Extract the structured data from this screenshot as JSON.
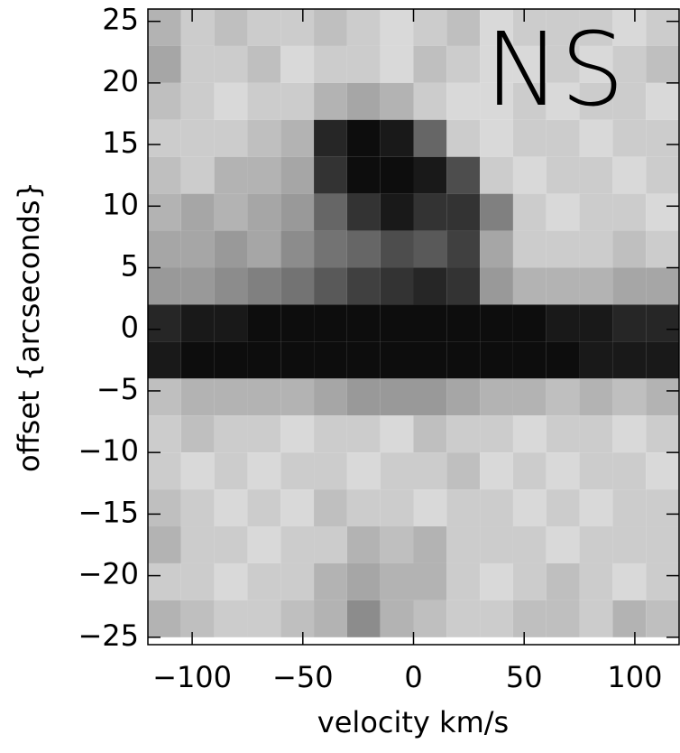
{
  "chart_data": {
    "type": "heatmap",
    "annotation": "NS",
    "xlabel": "velocity km/s",
    "ylabel": "offset {arcseconds}",
    "xlim": [
      -120,
      120
    ],
    "ylim": [
      -25.6,
      26
    ],
    "xticks": [
      {
        "value": -100,
        "label": "−100"
      },
      {
        "value": -50,
        "label": "−50"
      },
      0,
      50,
      100
    ],
    "yticks": [
      {
        "value": -25,
        "label": "−25"
      },
      {
        "value": -20,
        "label": "−20"
      },
      {
        "value": -15,
        "label": "−15"
      },
      {
        "value": -10,
        "label": "−10"
      },
      {
        "value": -5,
        "label": "−5"
      },
      0,
      5,
      10,
      15,
      20,
      25
    ],
    "x": [
      -112.5,
      -97.5,
      -82.5,
      -67.5,
      -52.5,
      -37.5,
      -22.5,
      -7.5,
      7.5,
      22.5,
      37.5,
      52.5,
      67.5,
      82.5,
      97.5,
      112.5
    ],
    "y": [
      24.5,
      21.5,
      18.5,
      15.5,
      12.5,
      9.5,
      6.5,
      3.5,
      0.5,
      -2.5,
      -5.5,
      -8.5,
      -11.5,
      -14.5,
      -17.5,
      -20.5,
      -23.5
    ],
    "values": [
      [
        0.3,
        0.2,
        0.25,
        0.2,
        0.2,
        0.25,
        0.2,
        0.15,
        0.2,
        0.25,
        0.15,
        0.2,
        0.2,
        0.2,
        0.15,
        0.2
      ],
      [
        0.35,
        0.2,
        0.2,
        0.25,
        0.15,
        0.2,
        0.2,
        0.15,
        0.25,
        0.2,
        0.15,
        0.15,
        0.2,
        0.15,
        0.2,
        0.25
      ],
      [
        0.25,
        0.2,
        0.15,
        0.2,
        0.2,
        0.3,
        0.35,
        0.3,
        0.2,
        0.15,
        0.15,
        0.2,
        0.15,
        0.2,
        0.2,
        0.15
      ],
      [
        0.2,
        0.2,
        0.2,
        0.25,
        0.3,
        0.85,
        0.95,
        0.9,
        0.6,
        0.2,
        0.15,
        0.2,
        0.2,
        0.15,
        0.2,
        0.2
      ],
      [
        0.25,
        0.2,
        0.3,
        0.3,
        0.35,
        0.8,
        0.95,
        0.95,
        0.9,
        0.7,
        0.2,
        0.15,
        0.2,
        0.2,
        0.15,
        0.2
      ],
      [
        0.3,
        0.35,
        0.3,
        0.35,
        0.4,
        0.6,
        0.8,
        0.9,
        0.8,
        0.8,
        0.5,
        0.2,
        0.15,
        0.2,
        0.2,
        0.15
      ],
      [
        0.35,
        0.35,
        0.4,
        0.35,
        0.45,
        0.55,
        0.6,
        0.7,
        0.65,
        0.75,
        0.35,
        0.2,
        0.2,
        0.2,
        0.25,
        0.2
      ],
      [
        0.4,
        0.4,
        0.45,
        0.5,
        0.55,
        0.65,
        0.75,
        0.8,
        0.85,
        0.8,
        0.4,
        0.3,
        0.3,
        0.3,
        0.35,
        0.35
      ],
      [
        0.85,
        0.9,
        0.9,
        0.95,
        0.95,
        0.95,
        0.95,
        0.95,
        0.95,
        0.95,
        0.95,
        0.95,
        0.9,
        0.9,
        0.85,
        0.85
      ],
      [
        0.9,
        0.95,
        0.95,
        0.95,
        0.95,
        0.95,
        0.95,
        0.95,
        0.95,
        0.95,
        0.95,
        0.95,
        0.95,
        0.9,
        0.9,
        0.9
      ],
      [
        0.25,
        0.3,
        0.3,
        0.3,
        0.3,
        0.35,
        0.4,
        0.4,
        0.4,
        0.35,
        0.3,
        0.3,
        0.25,
        0.3,
        0.25,
        0.3
      ],
      [
        0.2,
        0.25,
        0.2,
        0.2,
        0.15,
        0.2,
        0.2,
        0.15,
        0.25,
        0.2,
        0.2,
        0.15,
        0.2,
        0.2,
        0.15,
        0.2
      ],
      [
        0.2,
        0.15,
        0.2,
        0.15,
        0.2,
        0.2,
        0.15,
        0.2,
        0.2,
        0.25,
        0.15,
        0.2,
        0.15,
        0.2,
        0.2,
        0.15
      ],
      [
        0.25,
        0.2,
        0.15,
        0.2,
        0.15,
        0.25,
        0.2,
        0.2,
        0.15,
        0.2,
        0.2,
        0.15,
        0.2,
        0.15,
        0.2,
        0.2
      ],
      [
        0.3,
        0.2,
        0.2,
        0.15,
        0.2,
        0.2,
        0.3,
        0.25,
        0.3,
        0.2,
        0.2,
        0.2,
        0.15,
        0.2,
        0.2,
        0.2
      ],
      [
        0.2,
        0.2,
        0.15,
        0.2,
        0.2,
        0.3,
        0.35,
        0.3,
        0.3,
        0.2,
        0.15,
        0.2,
        0.25,
        0.2,
        0.15,
        0.2
      ],
      [
        0.3,
        0.25,
        0.2,
        0.2,
        0.25,
        0.3,
        0.45,
        0.3,
        0.25,
        0.2,
        0.2,
        0.25,
        0.25,
        0.2,
        0.3,
        0.25
      ]
    ]
  }
}
